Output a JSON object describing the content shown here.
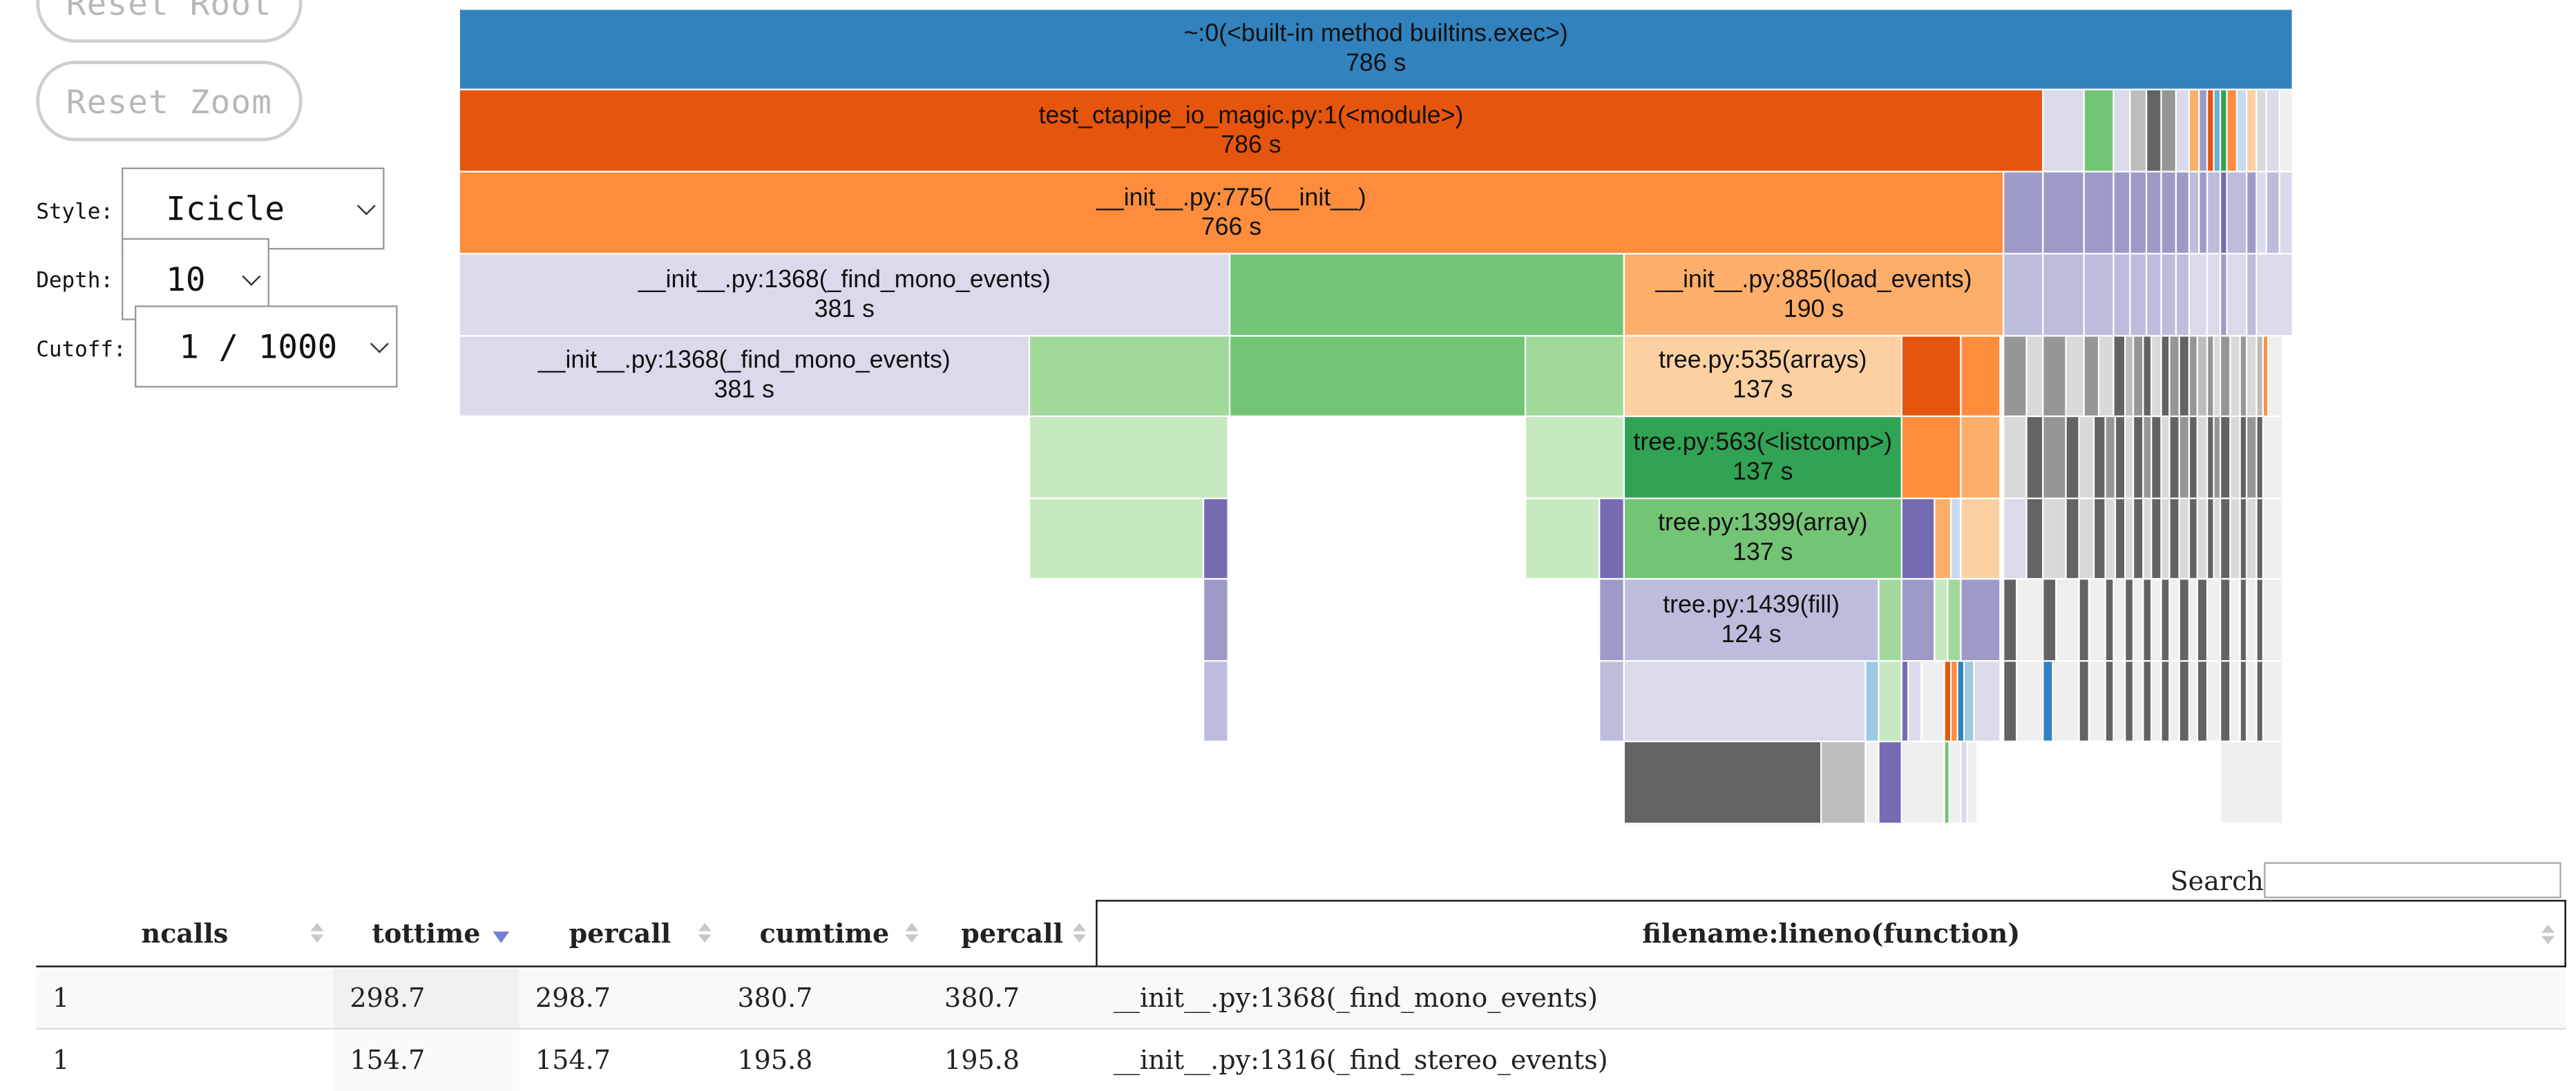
{
  "controls": {
    "reset_root_label": "Reset Root",
    "reset_zoom_label": "Reset Zoom",
    "style_label": "Style:",
    "style_value": "Icicle",
    "depth_label": "Depth:",
    "depth_value": "10",
    "cutoff_label": "Cutoff:",
    "cutoff_value": "1 / 1000"
  },
  "icicle": {
    "blocks": [
      {
        "label": "~:0(<built-in method builtins.exec>)",
        "value": "786 s",
        "color": "#3182bd"
      },
      {
        "label": "test_ctapipe_io_magic.py:1(<module>)",
        "value": "786 s",
        "color": "#e6550d"
      },
      {
        "label": "__init__.py:775(__init__)",
        "value": "766 s",
        "color": "#fd8d3c"
      },
      {
        "label": "__init__.py:1368(_find_mono_events)",
        "value": "381 s",
        "color": "#dadaeb"
      },
      {
        "label": "__init__.py:885(load_events)",
        "value": "190 s",
        "color": "#fdae6b"
      },
      {
        "label": "__init__.py:1368(_find_mono_events)",
        "value": "381 s",
        "color": "#dadaeb"
      },
      {
        "label": "tree.py:535(arrays)",
        "value": "137 s",
        "color": "#fdd0a2"
      },
      {
        "label": "tree.py:563(<listcomp>)",
        "value": "137 s",
        "color": "#31a354"
      },
      {
        "label": "tree.py:1399(array)",
        "value": "137 s",
        "color": "#74c476"
      },
      {
        "label": "tree.py:1439(fill)",
        "value": "124 s",
        "color": "#bcbddc"
      }
    ]
  },
  "search": {
    "label": "Search:",
    "placeholder": ""
  },
  "table": {
    "columns": [
      "ncalls",
      "tottime",
      "percall",
      "cumtime",
      "percall",
      "filename:lineno(function)"
    ],
    "sorted_column": "tottime",
    "rows": [
      [
        "1",
        "298.7",
        "298.7",
        "380.7",
        "380.7",
        "__init__.py:1368(_find_mono_events)"
      ],
      [
        "1",
        "154.7",
        "154.7",
        "195.8",
        "195.8",
        "__init__.py:1316(_find_stereo_events)"
      ]
    ]
  }
}
